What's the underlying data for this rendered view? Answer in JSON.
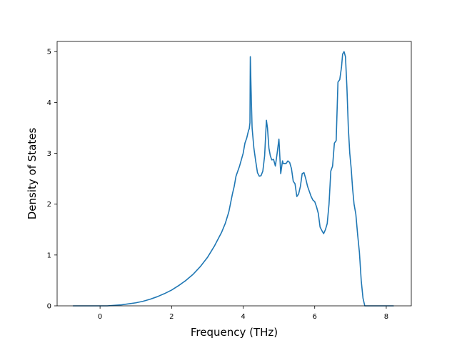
{
  "chart_data": {
    "type": "line",
    "title": "",
    "xlabel": "Frequency (THz)",
    "ylabel": "Density of States",
    "xlim": [
      -1.2,
      8.7
    ],
    "ylim": [
      0,
      5.2
    ],
    "xticks": [
      0,
      2,
      4,
      6,
      8
    ],
    "xtick_labels": [
      "0",
      "2",
      "4",
      "6",
      "8"
    ],
    "yticks": [
      0,
      1,
      2,
      3,
      4,
      5
    ],
    "ytick_labels": [
      "0",
      "1",
      "2",
      "3",
      "4",
      "5"
    ],
    "grid": false,
    "line_color": "#1f77b4",
    "series": [
      {
        "x": [
          -0.75,
          -0.4,
          0.0,
          0.2,
          0.4,
          0.6,
          0.8,
          1.0,
          1.2,
          1.4,
          1.6,
          1.8,
          2.0,
          2.2,
          2.4,
          2.6,
          2.8,
          3.0,
          3.2,
          3.4,
          3.5,
          3.6,
          3.7,
          3.75,
          3.8,
          3.9,
          4.0,
          4.05,
          4.1,
          4.15,
          4.17,
          4.19,
          4.2,
          4.22,
          4.25,
          4.3,
          4.35,
          4.4,
          4.45,
          4.5,
          4.55,
          4.6,
          4.65,
          4.68,
          4.72,
          4.76,
          4.8,
          4.85,
          4.9,
          4.95,
          5.0,
          5.05,
          5.1,
          5.12,
          5.15,
          5.2,
          5.25,
          5.3,
          5.35,
          5.4,
          5.45,
          5.5,
          5.55,
          5.6,
          5.65,
          5.7,
          5.75,
          5.8,
          5.85,
          5.9,
          5.95,
          6.0,
          6.05,
          6.1,
          6.15,
          6.2,
          6.25,
          6.3,
          6.35,
          6.4,
          6.45,
          6.5,
          6.55,
          6.6,
          6.65,
          6.7,
          6.75,
          6.78,
          6.82,
          6.86,
          6.9,
          6.94,
          6.98,
          7.02,
          7.06,
          7.1,
          7.15,
          7.2,
          7.25,
          7.3,
          7.35,
          7.4,
          7.45,
          7.5,
          7.55,
          7.6,
          7.8,
          8.2
        ],
        "y": [
          0.0,
          0.0,
          0.0,
          0.0,
          0.01,
          0.02,
          0.04,
          0.06,
          0.09,
          0.13,
          0.18,
          0.24,
          0.31,
          0.4,
          0.5,
          0.62,
          0.77,
          0.95,
          1.18,
          1.45,
          1.62,
          1.85,
          2.2,
          2.35,
          2.55,
          2.75,
          3.0,
          3.2,
          3.3,
          3.45,
          3.48,
          3.6,
          4.9,
          4.3,
          3.5,
          3.1,
          2.85,
          2.62,
          2.55,
          2.56,
          2.65,
          2.95,
          3.65,
          3.5,
          3.1,
          2.95,
          2.87,
          2.88,
          2.75,
          3.0,
          3.28,
          2.6,
          2.85,
          2.8,
          2.8,
          2.8,
          2.85,
          2.82,
          2.7,
          2.45,
          2.4,
          2.15,
          2.2,
          2.35,
          2.6,
          2.62,
          2.5,
          2.35,
          2.25,
          2.15,
          2.08,
          2.05,
          1.95,
          1.82,
          1.55,
          1.48,
          1.42,
          1.5,
          1.62,
          2.0,
          2.65,
          2.75,
          3.2,
          3.25,
          4.4,
          4.45,
          4.7,
          4.95,
          5.0,
          4.9,
          4.3,
          3.5,
          3.0,
          2.7,
          2.3,
          2.0,
          1.8,
          1.4,
          1.05,
          0.5,
          0.15,
          0.0,
          0.0,
          0.0,
          0.0,
          0.0,
          0.0,
          0.0
        ]
      }
    ]
  }
}
